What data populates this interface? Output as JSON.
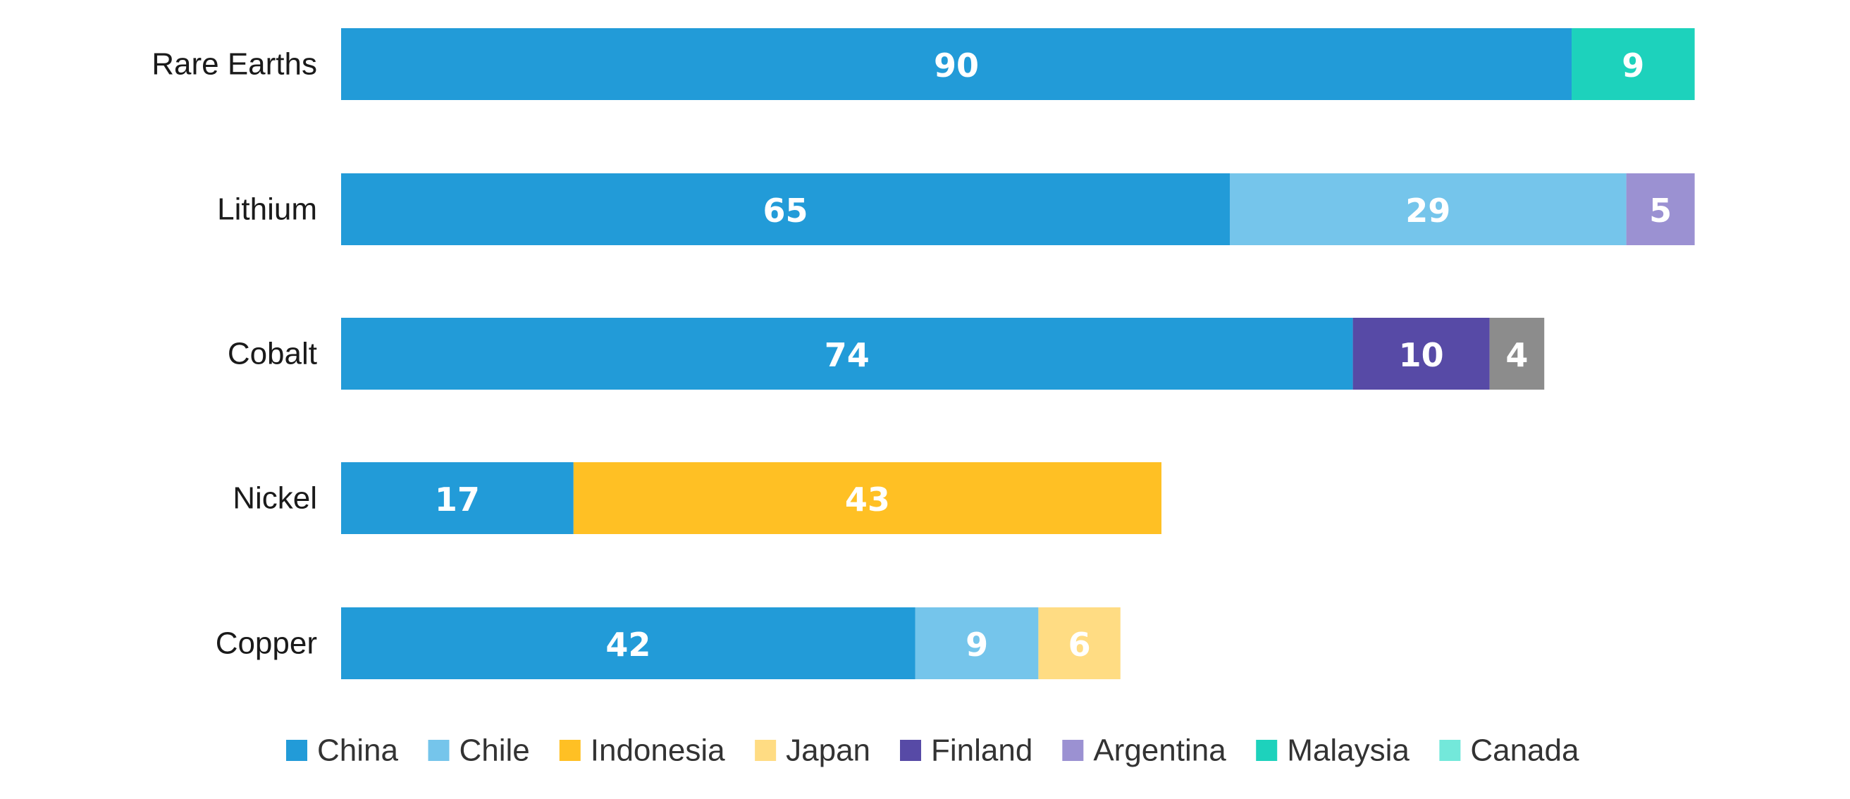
{
  "chart_data": {
    "type": "bar",
    "orientation": "horizontal",
    "stacked": true,
    "categories": [
      "Rare Earths",
      "Lithium",
      "Cobalt",
      "Nickel",
      "Copper"
    ],
    "series": [
      {
        "name": "China",
        "color": "#229BD8",
        "values": [
          90,
          65,
          74,
          17,
          42
        ]
      },
      {
        "name": "Chile",
        "color": "#75C5EB",
        "values": [
          null,
          29,
          null,
          null,
          9
        ]
      },
      {
        "name": "Indonesia",
        "color": "#FFC024",
        "values": [
          null,
          null,
          null,
          43,
          null
        ]
      },
      {
        "name": "Japan",
        "color": "#FFDC83",
        "values": [
          null,
          null,
          null,
          null,
          6
        ]
      },
      {
        "name": "Finland",
        "color": "#574AA6",
        "values": [
          null,
          null,
          10,
          null,
          null
        ]
      },
      {
        "name": "Argentina",
        "color": "#9B91D2",
        "values": [
          null,
          5,
          null,
          null,
          null
        ]
      },
      {
        "name": "Malaysia",
        "color": "#1DD2BC",
        "values": [
          9,
          null,
          null,
          null,
          null
        ]
      },
      {
        "name": "Canada",
        "color": "#73E8DA",
        "values": [
          null,
          null,
          null,
          null,
          null
        ]
      }
    ],
    "extra_segments": [
      {
        "category": "Cobalt",
        "value": 4,
        "color": "#8C8C8C"
      }
    ],
    "xlim": [
      0,
      99
    ],
    "grid": false,
    "legend": {
      "position": "bottom"
    }
  }
}
